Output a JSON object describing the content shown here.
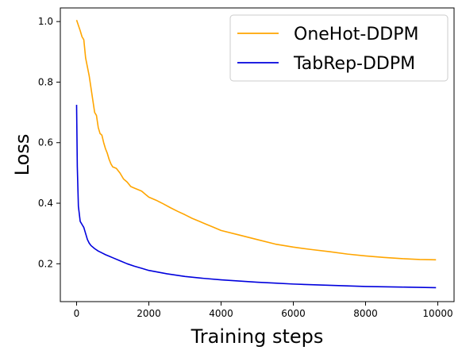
{
  "chart_data": {
    "type": "line",
    "xlabel": "Training steps",
    "ylabel": "Loss",
    "xlim": [
      -450,
      10450
    ],
    "ylim": [
      0.075,
      1.045
    ],
    "xticks": [
      0,
      2000,
      4000,
      6000,
      8000,
      10000
    ],
    "yticks": [
      0.2,
      0.4,
      0.6,
      0.8,
      1.0
    ],
    "xtick_labels": [
      "0",
      "2000",
      "4000",
      "6000",
      "8000",
      "10000"
    ],
    "ytick_labels": [
      "0.2",
      "0.4",
      "0.6",
      "0.8",
      "1.0"
    ],
    "grid": false,
    "legend_position": "top-right",
    "series": [
      {
        "name": "OneHot-DDPM",
        "color": "#ffa500",
        "x": [
          0,
          100,
          150,
          200,
          250,
          300,
          350,
          400,
          450,
          500,
          550,
          600,
          650,
          700,
          750,
          800,
          850,
          900,
          950,
          1000,
          1100,
          1200,
          1300,
          1400,
          1500,
          1600,
          1700,
          1800,
          1900,
          2000,
          2200,
          2400,
          2600,
          2800,
          3000,
          3200,
          3400,
          3600,
          3800,
          4000,
          4500,
          5000,
          5500,
          6000,
          6500,
          7000,
          7500,
          8000,
          8500,
          9000,
          9500,
          9950
        ],
        "values": [
          1.005,
          0.97,
          0.95,
          0.94,
          0.88,
          0.85,
          0.82,
          0.78,
          0.74,
          0.7,
          0.69,
          0.65,
          0.63,
          0.625,
          0.6,
          0.58,
          0.565,
          0.545,
          0.53,
          0.52,
          0.515,
          0.5,
          0.48,
          0.47,
          0.455,
          0.45,
          0.445,
          0.44,
          0.43,
          0.42,
          0.41,
          0.398,
          0.385,
          0.373,
          0.362,
          0.35,
          0.34,
          0.33,
          0.32,
          0.31,
          0.295,
          0.28,
          0.265,
          0.255,
          0.247,
          0.24,
          0.232,
          0.226,
          0.221,
          0.217,
          0.214,
          0.213
        ]
      },
      {
        "name": "TabRep-DDPM",
        "color": "#0000dd",
        "x": [
          0,
          20,
          50,
          80,
          100,
          150,
          200,
          250,
          300,
          350,
          400,
          500,
          600,
          700,
          800,
          900,
          1000,
          1200,
          1400,
          1600,
          1800,
          2000,
          2500,
          3000,
          3500,
          4000,
          4500,
          5000,
          5500,
          6000,
          6500,
          7000,
          7500,
          8000,
          8500,
          9000,
          9500,
          9950
        ],
        "values": [
          0.725,
          0.52,
          0.39,
          0.36,
          0.34,
          0.33,
          0.32,
          0.3,
          0.28,
          0.268,
          0.26,
          0.25,
          0.242,
          0.236,
          0.23,
          0.225,
          0.22,
          0.21,
          0.2,
          0.192,
          0.185,
          0.178,
          0.167,
          0.158,
          0.152,
          0.147,
          0.143,
          0.139,
          0.136,
          0.133,
          0.131,
          0.129,
          0.127,
          0.125,
          0.124,
          0.123,
          0.122,
          0.121
        ]
      }
    ]
  }
}
